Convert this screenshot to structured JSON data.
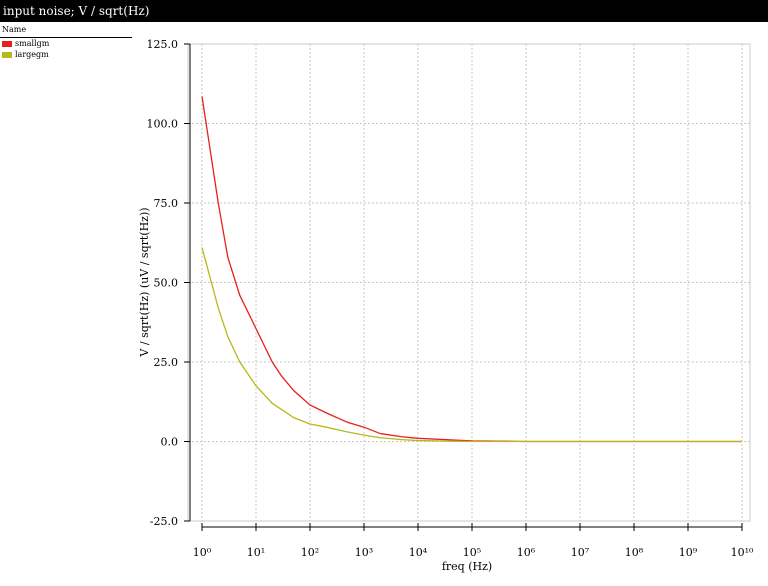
{
  "chart_data": {
    "type": "line",
    "title": "input noise; V / sqrt(Hz)",
    "legend_header": "Name",
    "x_label": "freq (Hz)",
    "y_label": "V / sqrt(Hz) (uV / sqrt(Hz))",
    "xscale": "log",
    "grid": true,
    "x": [
      1,
      2,
      3,
      5,
      10,
      20,
      30,
      50,
      100,
      200,
      500,
      1000,
      2000,
      5000,
      10000,
      100000,
      1000000,
      10000000000
    ],
    "series": [
      {
        "name": "smallgm",
        "color": "#e8201c",
        "values": [
          108.5,
          75,
          58,
          46,
          35.5,
          25,
          20.5,
          16,
          11.5,
          9,
          6,
          4.5,
          2.5,
          1.5,
          1,
          0.2,
          0,
          0
        ]
      },
      {
        "name": "largegm",
        "color": "#b8b81c",
        "values": [
          61,
          42,
          33,
          25,
          17.5,
          12,
          10,
          7.5,
          5.5,
          4.5,
          3,
          2,
          1.2,
          0.6,
          0.3,
          0,
          0,
          0
        ]
      }
    ],
    "xlim": [
      1,
      10000000000
    ],
    "xticks": [
      {
        "value": 1,
        "label": "10⁰"
      },
      {
        "value": 10,
        "label": "10¹"
      },
      {
        "value": 100,
        "label": "10²"
      },
      {
        "value": 1000,
        "label": "10³"
      },
      {
        "value": 10000,
        "label": "10⁴"
      },
      {
        "value": 100000,
        "label": "10⁵"
      },
      {
        "value": 1000000,
        "label": "10⁶"
      },
      {
        "value": 10000000,
        "label": "10⁷"
      },
      {
        "value": 100000000,
        "label": "10⁸"
      },
      {
        "value": 1000000000,
        "label": "10⁹"
      },
      {
        "value": 10000000000,
        "label": "10¹⁰"
      }
    ],
    "ylim": [
      -25,
      125
    ],
    "yticks": [
      {
        "value": -25,
        "label": "-25.0"
      },
      {
        "value": 0,
        "label": "0.0"
      },
      {
        "value": 25,
        "label": "25.0"
      },
      {
        "value": 50,
        "label": "50.0"
      },
      {
        "value": 75,
        "label": "75.0"
      },
      {
        "value": 100,
        "label": "100.0"
      },
      {
        "value": 125,
        "label": "125.0"
      }
    ]
  }
}
